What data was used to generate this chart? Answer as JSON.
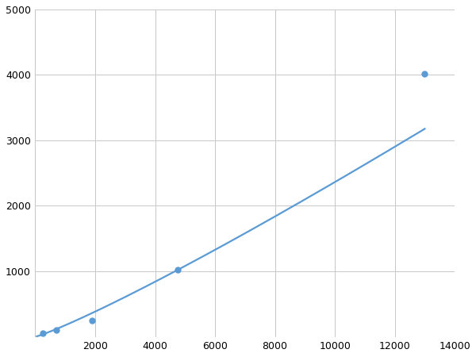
{
  "x_data": [
    250,
    700,
    1900,
    4750,
    13000
  ],
  "y_data": [
    50,
    100,
    250,
    1020,
    4020
  ],
  "line_color": "#5b9bd5",
  "marker_color": "#5b9bd5",
  "marker_size": 5,
  "line_width": 1.6,
  "xlim": [
    0,
    14000
  ],
  "ylim": [
    0,
    5000
  ],
  "xticks": [
    0,
    2000,
    4000,
    6000,
    8000,
    10000,
    12000,
    14000
  ],
  "yticks": [
    0,
    1000,
    2000,
    3000,
    4000,
    5000
  ],
  "xtick_labels": [
    "",
    "2000",
    "4000",
    "6000",
    "8000",
    "10000",
    "12000",
    "14000"
  ],
  "ytick_labels": [
    "",
    "1000",
    "2000",
    "3000",
    "4000",
    "5000"
  ],
  "grid_color": "#c8c8c8",
  "grid_linewidth": 0.7,
  "background_color": "#ffffff",
  "tick_fontsize": 9,
  "figsize": [
    6.0,
    4.5
  ],
  "dpi": 100
}
